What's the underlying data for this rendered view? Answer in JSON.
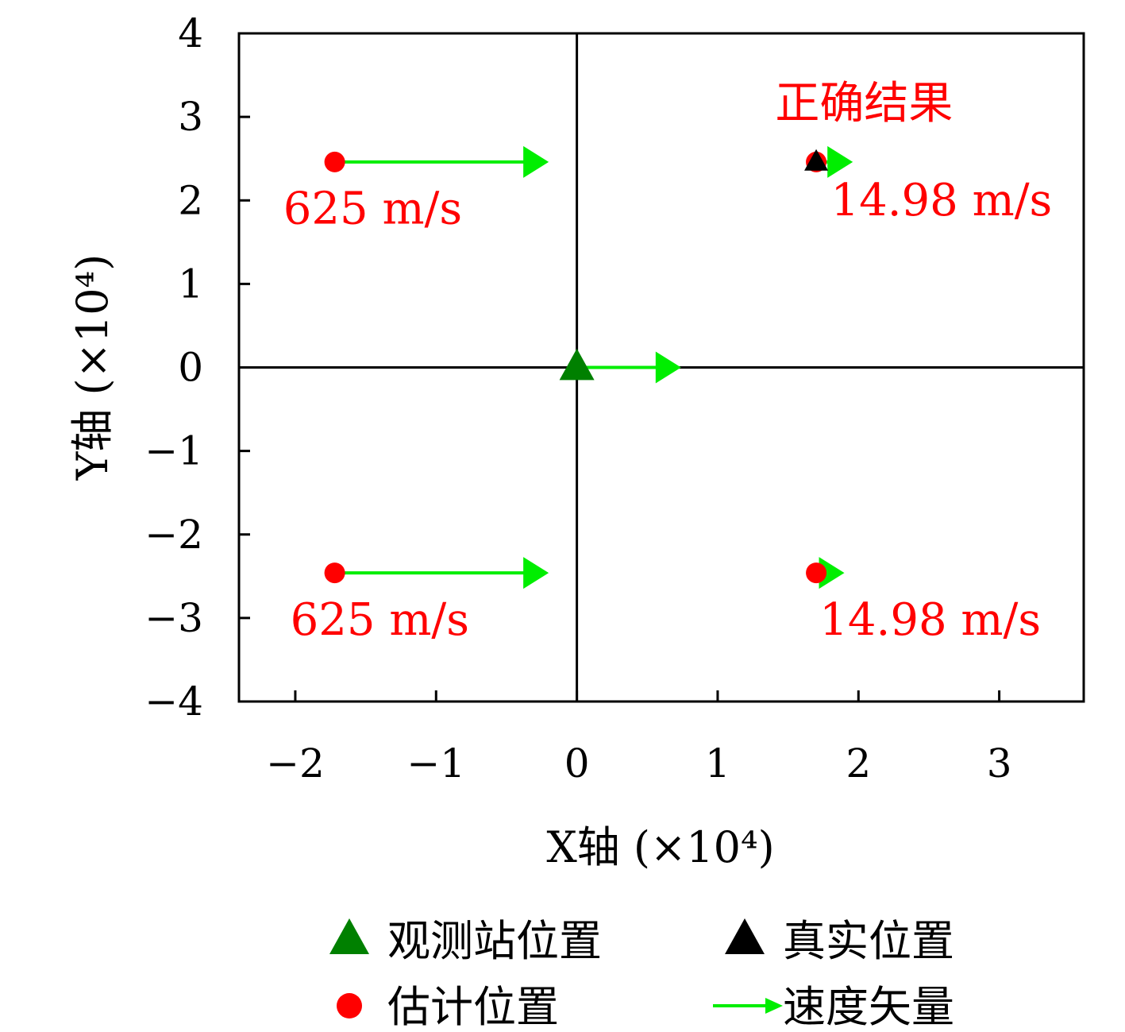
{
  "chart_data": {
    "type": "scatter",
    "xlabel": "X轴 (×10⁴)",
    "ylabel": "Y轴 (×10⁴)",
    "xlim": [
      -2.4,
      3.6
    ],
    "ylim": [
      -4,
      4
    ],
    "xticks": [
      -2,
      -1,
      0,
      1,
      2,
      3
    ],
    "yticks": [
      -4,
      -3,
      -2,
      -1,
      0,
      1,
      2,
      3,
      4
    ],
    "x_tick_labels": [
      "−2",
      "−1",
      "0",
      "1",
      "2",
      "3"
    ],
    "y_tick_labels": [
      "−4",
      "−3",
      "−2",
      "−1",
      "0",
      "1",
      "2",
      "3",
      "4"
    ],
    "grid": false,
    "reference_lines": {
      "x": 0,
      "y": 0
    },
    "series": [
      {
        "name": "观测站位置",
        "marker": "triangle",
        "color": "#008000",
        "points": [
          [
            0,
            0
          ]
        ]
      },
      {
        "name": "真实位置",
        "marker": "triangle",
        "color": "#000000",
        "points": [
          [
            1.7,
            2.46
          ]
        ]
      },
      {
        "name": "估计位置",
        "marker": "circle",
        "color": "#ff0000",
        "points": [
          [
            -1.72,
            2.46
          ],
          [
            -1.72,
            -2.46
          ],
          [
            1.7,
            2.46
          ],
          [
            1.7,
            -2.46
          ]
        ]
      },
      {
        "name": "速度矢量",
        "marker": "arrow",
        "color": "#00ee00",
        "vectors": [
          {
            "from": [
              -1.72,
              2.46
            ],
            "to": [
              -0.2,
              2.46
            ]
          },
          {
            "from": [
              -1.72,
              -2.46
            ],
            "to": [
              -0.2,
              -2.46
            ]
          },
          {
            "from": [
              1.7,
              2.46
            ],
            "to": [
              1.96,
              2.46
            ]
          },
          {
            "from": [
              1.7,
              -2.46
            ],
            "to": [
              1.9,
              -2.46
            ]
          },
          {
            "from": [
              0,
              0
            ],
            "to": [
              0.74,
              0
            ]
          }
        ]
      }
    ],
    "annotations": [
      {
        "text": "正确结果",
        "x": 2.04,
        "y": 2.98,
        "color": "#ff0000"
      },
      {
        "text": "625 m/s",
        "x": -1.45,
        "y": 1.72,
        "color": "#ff0000"
      },
      {
        "text": "14.98 m/s",
        "x": 2.59,
        "y": 1.82,
        "color": "#ff0000"
      },
      {
        "text": "625 m/s",
        "x": -1.4,
        "y": -3.2,
        "color": "#ff0000"
      },
      {
        "text": "14.98 m/s",
        "x": 2.51,
        "y": -3.2,
        "color": "#ff0000"
      }
    ],
    "legend": {
      "position": "bottom",
      "entries": [
        {
          "label": "观测站位置",
          "symbol": "triangle",
          "color": "#008000"
        },
        {
          "label": "真实位置",
          "symbol": "triangle",
          "color": "#000000"
        },
        {
          "label": "估计位置",
          "symbol": "circle",
          "color": "#ff0000"
        },
        {
          "label": "速度矢量",
          "symbol": "arrow",
          "color": "#00ee00"
        }
      ]
    }
  }
}
